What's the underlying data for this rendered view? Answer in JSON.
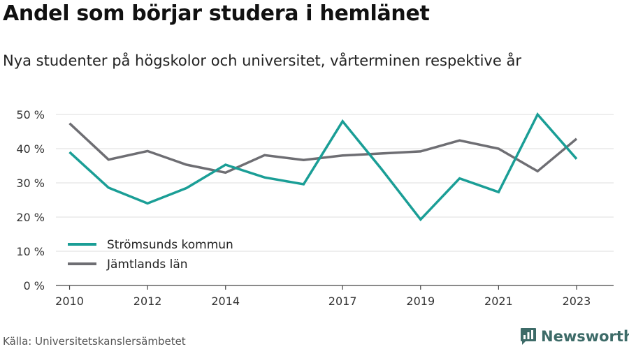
{
  "title": "Andel som börjar studera i hemlänet",
  "subtitle": "Nya studenter på högskolor och universitet, vårterminen respektive år",
  "source": "Källa: Universitetskanslersämbetet",
  "brand": {
    "name": "Newsworthy",
    "icon": "newsworthy-logo-icon",
    "color": "#3d6b68"
  },
  "chart_data": {
    "type": "line",
    "x": [
      2010,
      2011,
      2012,
      2013,
      2014,
      2015,
      2016,
      2017,
      2018,
      2019,
      2020,
      2021,
      2022,
      2023
    ],
    "x_ticks": [
      2010,
      2012,
      2014,
      2017,
      2019,
      2021,
      2023
    ],
    "y_ticks": [
      0,
      10,
      20,
      30,
      40,
      50
    ],
    "y_tick_labels": [
      "0 %",
      "10 %",
      "20 %",
      "30 %",
      "40 %",
      "50 %"
    ],
    "ylim": [
      0,
      50
    ],
    "grid": true,
    "legend_position": "bottom-left",
    "series": [
      {
        "name": "Strömsunds kommun",
        "color": "#1a9e96",
        "values": [
          39,
          28.6,
          24,
          28.5,
          35.3,
          31.6,
          29.6,
          48,
          34,
          19.3,
          31.3,
          27.3,
          50,
          37
        ]
      },
      {
        "name": "Jämtlands län",
        "color": "#6e6e73",
        "values": [
          47.4,
          36.8,
          39.3,
          35.3,
          33,
          38.1,
          36.7,
          38,
          38.6,
          39.2,
          42.4,
          40,
          33.4,
          42.9
        ]
      }
    ]
  }
}
